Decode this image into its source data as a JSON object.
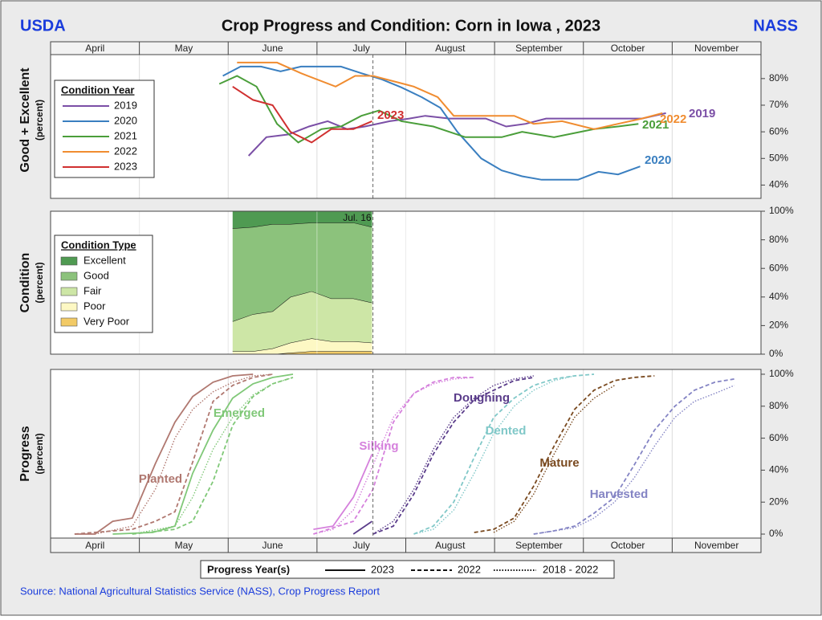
{
  "header": {
    "left": "USDA",
    "title": "Crop Progress and Condition: Corn in Iowa , 2023",
    "right": "NASS"
  },
  "months": [
    "April",
    "May",
    "June",
    "July",
    "August",
    "September",
    "October",
    "November"
  ],
  "chart_data": [
    {
      "type": "line",
      "ylabel": "Good + Excellent",
      "yunit_label": "(percent)",
      "legend_title": "Condition Year",
      "xlim": [
        0,
        8
      ],
      "ylim": [
        35,
        89
      ],
      "yticks": [
        {
          "value": 40,
          "label": "40%"
        },
        {
          "value": 50,
          "label": "50%"
        },
        {
          "value": 60,
          "label": "60%"
        },
        {
          "value": 70,
          "label": "70%"
        },
        {
          "value": 80,
          "label": "80%"
        }
      ],
      "marker_x": 3.63,
      "series": [
        {
          "name": "2019",
          "color": "#7b4fa6",
          "x": [
            2.23,
            2.43,
            2.68,
            2.91,
            3.12,
            3.34,
            3.54,
            3.82,
            4.04,
            4.22,
            4.49,
            4.9,
            5.13,
            5.35,
            5.58,
            6.12,
            6.66,
            6.93
          ],
          "values": [
            51,
            58,
            59,
            62,
            64,
            61,
            62,
            64,
            65,
            66,
            65,
            65,
            62,
            63,
            65,
            65,
            65,
            67
          ]
        },
        {
          "name": "2020",
          "color": "#3a7fc0",
          "x": [
            1.94,
            2.14,
            2.37,
            2.59,
            2.82,
            3.27,
            3.5,
            3.73,
            3.95,
            4.18,
            4.39,
            4.58,
            4.85,
            5.08,
            5.31,
            5.53,
            5.94,
            6.17,
            6.39,
            6.64
          ],
          "values": [
            81,
            84.5,
            84.5,
            82.7,
            84.5,
            84.5,
            82,
            79.7,
            76.7,
            73,
            69,
            60,
            50,
            45.5,
            43.3,
            42,
            42,
            45,
            44,
            47
          ]
        },
        {
          "name": "2021",
          "color": "#4a9e3a",
          "x": [
            1.9,
            2.1,
            2.32,
            2.55,
            2.79,
            3.05,
            3.27,
            3.5,
            3.7,
            3.95,
            4.31,
            4.67,
            5.08,
            5.31,
            5.67,
            6.12,
            6.39,
            6.62
          ],
          "values": [
            78,
            81,
            77,
            63,
            56,
            61,
            62,
            66,
            68,
            64,
            62,
            58,
            58,
            60,
            58,
            61,
            62,
            63
          ]
        },
        {
          "name": "2022",
          "color": "#f08c30",
          "x": [
            2.1,
            2.55,
            2.82,
            3.21,
            3.43,
            3.63,
            3.86,
            4.09,
            4.36,
            4.54,
            5.22,
            5.44,
            5.76,
            6.12,
            6.39,
            6.66,
            6.89
          ],
          "values": [
            86,
            86,
            82,
            77,
            81,
            81,
            79,
            77,
            73,
            66,
            66,
            63,
            64,
            61,
            63,
            65,
            67
          ]
        },
        {
          "name": "2023",
          "color": "#d03030",
          "x": [
            2.05,
            2.28,
            2.5,
            2.7,
            2.94,
            3.16,
            3.41,
            3.62
          ],
          "values": [
            77,
            72,
            70,
            60,
            56,
            61,
            61,
            64
          ]
        }
      ]
    },
    {
      "type": "area",
      "stacked": true,
      "ylabel": "Condition",
      "yunit_label": "(percent)",
      "legend_title": "Condition Type",
      "xlim": [
        0,
        8
      ],
      "ylim": [
        0,
        100
      ],
      "yticks": [
        {
          "value": 0,
          "label": "0%"
        },
        {
          "value": 20,
          "label": "20%"
        },
        {
          "value": 40,
          "label": "40%"
        },
        {
          "value": 60,
          "label": "60%"
        },
        {
          "value": 80,
          "label": "80%"
        },
        {
          "value": 100,
          "label": "100%"
        }
      ],
      "marker": {
        "x": 3.63,
        "label": "Jul. 16"
      },
      "x": [
        2.05,
        2.28,
        2.5,
        2.7,
        2.94,
        3.16,
        3.41,
        3.62
      ],
      "series": [
        {
          "name": "Excellent",
          "color": "#4f9a52",
          "values": [
            12,
            11,
            9,
            9,
            8,
            8,
            8,
            11
          ]
        },
        {
          "name": "Good",
          "color": "#8cc27c",
          "values": [
            65,
            61,
            61,
            51,
            48,
            53,
            53,
            53
          ]
        },
        {
          "name": "Fair",
          "color": "#cde6a6",
          "values": [
            21,
            26,
            26,
            32,
            33,
            30,
            30,
            28
          ]
        },
        {
          "name": "Poor",
          "color": "#fdf8c4",
          "values": [
            2,
            2,
            4,
            7,
            9,
            7,
            7,
            6
          ]
        },
        {
          "name": "Very Poor",
          "color": "#f2ca66",
          "values": [
            0,
            0,
            0,
            1,
            2,
            2,
            2,
            2
          ]
        }
      ]
    },
    {
      "type": "progress",
      "ylabel": "Progress",
      "yunit_label": "(percent)",
      "legend_title": "Progress Year(s)",
      "xlim": [
        0,
        8
      ],
      "ylim": [
        -2.5,
        103
      ],
      "yticks": [
        {
          "value": 0,
          "label": "0%"
        },
        {
          "value": 20,
          "label": "20%"
        },
        {
          "value": 40,
          "label": "40%"
        },
        {
          "value": 60,
          "label": "60%"
        },
        {
          "value": 80,
          "label": "80%"
        },
        {
          "value": 100,
          "label": "100%"
        }
      ],
      "marker_x": 3.63,
      "years": [
        {
          "name": "2023",
          "dash": "solid"
        },
        {
          "name": "2022",
          "dash": "dashed"
        },
        {
          "name": "2018 - 2022",
          "dash": "dotted"
        }
      ],
      "stages": [
        {
          "name": "Planted",
          "color": "#b07870",
          "lines": [
            {
              "x": [
                0.27,
                0.5,
                0.7,
                0.92,
                1.18,
                1.4,
                1.6,
                1.83,
                2.05,
                2.28
              ],
              "values": [
                0,
                0,
                8,
                10,
                44,
                70,
                86,
                95,
                99,
                100
              ]
            },
            {
              "x": [
                0.27,
                0.92,
                1.18,
                1.4,
                1.6,
                1.83,
                2.05,
                2.28,
                2.5
              ],
              "values": [
                0,
                3,
                8,
                14,
                45,
                83,
                93,
                98,
                100
              ]
            },
            {
              "x": [
                0.5,
                0.92,
                1.18,
                1.4,
                1.6,
                1.83,
                2.05,
                2.28,
                2.5
              ],
              "values": [
                0,
                5,
                28,
                60,
                78,
                89,
                95,
                99,
                100
              ]
            }
          ]
        },
        {
          "name": "Emerged",
          "color": "#80c878",
          "lines": [
            {
              "x": [
                0.7,
                1.15,
                1.4,
                1.6,
                1.83,
                2.05,
                2.28,
                2.5,
                2.73
              ],
              "values": [
                0,
                1,
                5,
                38,
                65,
                85,
                94,
                98,
                100
              ]
            },
            {
              "x": [
                0.92,
                1.4,
                1.6,
                1.83,
                2.05,
                2.28,
                2.5,
                2.73
              ],
              "values": [
                0,
                3,
                8,
                33,
                68,
                86,
                94,
                98
              ]
            },
            {
              "x": [
                0.92,
                1.4,
                1.6,
                1.83,
                2.05,
                2.28,
                2.5,
                2.73
              ],
              "values": [
                0,
                5,
                23,
                53,
                73,
                87,
                94,
                98
              ]
            }
          ]
        },
        {
          "name": "Silking",
          "color": "#d580dc",
          "lines": [
            {
              "x": [
                2.96,
                3.18,
                3.41,
                3.62
              ],
              "values": [
                3,
                5,
                23,
                50
              ]
            },
            {
              "x": [
                2.96,
                3.41,
                3.63,
                3.86,
                4.09,
                4.31,
                4.54,
                4.77
              ],
              "values": [
                0,
                8,
                28,
                70,
                88,
                95,
                98,
                98
              ]
            },
            {
              "x": [
                2.96,
                3.18,
                3.41,
                3.63,
                3.86,
                4.09,
                4.31,
                4.54,
                4.77
              ],
              "values": [
                0,
                3,
                15,
                43,
                73,
                88,
                94,
                97,
                98
              ]
            }
          ]
        },
        {
          "name": "Doughing",
          "color": "#5a3c8a",
          "lines": [
            {
              "x": [
                3.41,
                3.62
              ],
              "values": [
                0,
                8
              ]
            },
            {
              "x": [
                3.63,
                3.86,
                4.09,
                4.31,
                4.54,
                4.77,
                4.99,
                5.22,
                5.44
              ],
              "values": [
                0,
                5,
                25,
                50,
                70,
                84,
                90,
                96,
                98
              ]
            },
            {
              "x": [
                3.63,
                3.86,
                4.09,
                4.31,
                4.54,
                4.77,
                4.99,
                5.22,
                5.44
              ],
              "values": [
                0,
                8,
                28,
                53,
                73,
                85,
                93,
                97,
                99
              ]
            }
          ]
        },
        {
          "name": "Dented",
          "color": "#80c8c8",
          "lines": [
            null,
            {
              "x": [
                4.09,
                4.31,
                4.54,
                4.77,
                4.99,
                5.22,
                5.44,
                5.67,
                5.9,
                6.12
              ],
              "values": [
                0,
                5,
                20,
                48,
                73,
                85,
                93,
                97,
                99,
                100
              ]
            },
            {
              "x": [
                4.09,
                4.31,
                4.54,
                4.77,
                4.99,
                5.22,
                5.44,
                5.67,
                5.9
              ],
              "values": [
                0,
                3,
                15,
                38,
                63,
                80,
                90,
                96,
                99
              ]
            }
          ]
        },
        {
          "name": "Mature",
          "color": "#7a4a20",
          "lines": [
            null,
            {
              "x": [
                4.77,
                4.99,
                5.22,
                5.44,
                5.67,
                5.9,
                6.12,
                6.35,
                6.57,
                6.8
              ],
              "values": [
                1,
                3,
                10,
                30,
                55,
                78,
                90,
                96,
                98,
                99
              ]
            },
            {
              "x": [
                4.99,
                5.22,
                5.44,
                5.67,
                5.9,
                6.12,
                6.35
              ],
              "values": [
                1,
                8,
                25,
                50,
                73,
                85,
                93
              ]
            }
          ]
        },
        {
          "name": "Harvested",
          "color": "#8484c4",
          "lines": [
            null,
            {
              "x": [
                5.44,
                5.67,
                5.9,
                6.12,
                6.35,
                6.57,
                6.8,
                7.03,
                7.25,
                7.48,
                7.7
              ],
              "values": [
                0,
                2,
                5,
                13,
                23,
                43,
                65,
                80,
                90,
                95,
                97
              ]
            },
            {
              "x": [
                5.44,
                5.9,
                6.12,
                6.35,
                6.57,
                6.8,
                7.03,
                7.25,
                7.48,
                7.7
              ],
              "values": [
                0,
                4,
                10,
                20,
                35,
                55,
                73,
                83,
                88,
                93
              ]
            }
          ]
        }
      ]
    }
  ],
  "source": "Source: National Agricultural Statistics Service (NASS), Crop Progress Report"
}
